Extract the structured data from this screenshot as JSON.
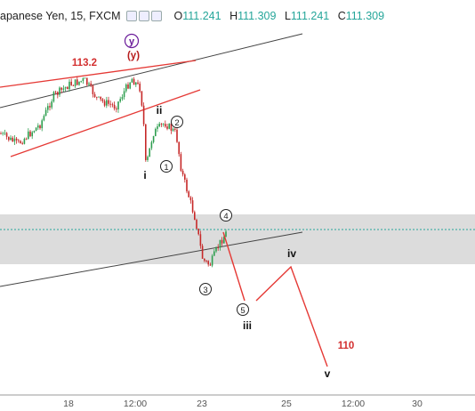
{
  "header": {
    "title": "apanese Yen, 15, FXCM",
    "ohlc": [
      {
        "key": "O",
        "value": "111.241"
      },
      {
        "key": "H",
        "value": "111.309"
      },
      {
        "key": "L",
        "value": "111.241"
      },
      {
        "key": "C",
        "value": "111.309"
      }
    ]
  },
  "colors": {
    "up_candle": "#2e9e4f",
    "down_candle": "#c62828",
    "projection": "#e53935",
    "trendline_red": "#e53935",
    "trendline_black": "#333333",
    "zone": "#d9d9d9",
    "current_price_line": "#26a69a"
  },
  "chart_data": {
    "type": "line",
    "xaxis_ticks": [
      "18",
      "12:00",
      "23",
      "25",
      "12:00",
      "30"
    ],
    "annotations": {
      "price_level_high": "113.2",
      "price_level_target": "110",
      "wave_y_circled": "y",
      "wave_y_paren": "(y)",
      "wave_i": "i",
      "wave_ii": "ii",
      "wave_iii": "iii",
      "wave_iv": "iv",
      "wave_v": "v",
      "sub_1": "1",
      "sub_2": "2",
      "sub_3": "3",
      "sub_4": "4",
      "sub_5": "5"
    },
    "price_path": [
      113.0,
      112.9,
      113.2,
      112.8,
      112.2,
      112.6,
      112.4,
      111.5,
      110.9,
      111.3
    ]
  }
}
